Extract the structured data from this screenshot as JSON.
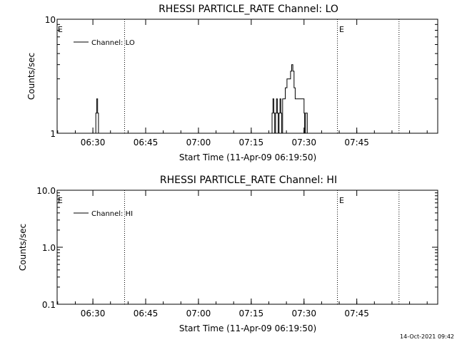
{
  "timestamp": "14-Oct-2021 09:42",
  "chart_data": [
    {
      "type": "line",
      "title": "RHESSI PARTICLE_RATE Channel: LO",
      "xlabel": "Start Time (11-Apr-09 06:19:50)",
      "ylabel": "Counts/sec",
      "yscale": "log",
      "xlim": [
        "06:19:50",
        "08:08:00"
      ],
      "ylim": [
        1,
        10
      ],
      "x_ticks": [
        "06:30",
        "06:45",
        "07:00",
        "07:15",
        "07:30",
        "07:45"
      ],
      "y_ticks": [
        "1",
        "10"
      ],
      "grid": false,
      "legend_position": "top-left",
      "markers": [
        {
          "label": "E",
          "time": "06:20:00"
        },
        {
          "label": "E",
          "time": "07:40:00"
        }
      ],
      "vlines": [
        "06:39:00",
        "07:39:30",
        "07:57:00"
      ],
      "series": [
        {
          "name": "Channel: LO",
          "color": "#000000",
          "x": [
            "06:30:30",
            "06:30:50",
            "06:31:05",
            "06:31:20",
            "06:31:35",
            "07:20:40",
            "07:20:55",
            "07:21:10",
            "07:21:25",
            "07:21:40",
            "07:21:55",
            "07:22:10",
            "07:22:25",
            "07:22:40",
            "07:22:55",
            "07:23:10",
            "07:23:25",
            "07:23:40",
            "07:23:55",
            "07:24:10",
            "07:24:40",
            "07:25:10",
            "07:25:40",
            "07:26:10",
            "07:26:30",
            "07:26:50",
            "07:27:10",
            "07:27:30",
            "07:28:00",
            "07:29:30",
            "07:30:00",
            "07:30:10",
            "07:30:25",
            "07:30:40",
            "07:30:55",
            "07:31:10"
          ],
          "values": [
            1,
            1.5,
            2,
            1.5,
            1,
            1,
            1.5,
            2,
            1.5,
            1,
            1.5,
            2,
            1.5,
            1,
            1.5,
            2,
            1.5,
            1,
            2,
            2,
            2.5,
            3,
            3,
            3.5,
            4,
            3.5,
            2.5,
            2,
            2,
            2,
            1.5,
            1,
            1.5,
            1.5,
            1,
            1
          ]
        }
      ]
    },
    {
      "type": "line",
      "title": "RHESSI PARTICLE_RATE Channel: HI",
      "xlabel": "Start Time (11-Apr-09 06:19:50)",
      "ylabel": "Counts/sec",
      "yscale": "log",
      "xlim": [
        "06:19:50",
        "08:08:00"
      ],
      "ylim": [
        0.1,
        10
      ],
      "x_ticks": [
        "06:30",
        "06:45",
        "07:00",
        "07:15",
        "07:30",
        "07:45"
      ],
      "y_ticks": [
        "0.1",
        "1.0",
        "10.0"
      ],
      "grid": false,
      "legend_position": "top-left",
      "markers": [
        {
          "label": "E",
          "time": "06:20:00"
        },
        {
          "label": "E",
          "time": "07:40:00"
        }
      ],
      "vlines": [
        "06:39:00",
        "07:39:30",
        "07:57:00"
      ],
      "series": [
        {
          "name": "Channel: HI",
          "color": "#000000",
          "x": [],
          "values": []
        }
      ]
    }
  ]
}
